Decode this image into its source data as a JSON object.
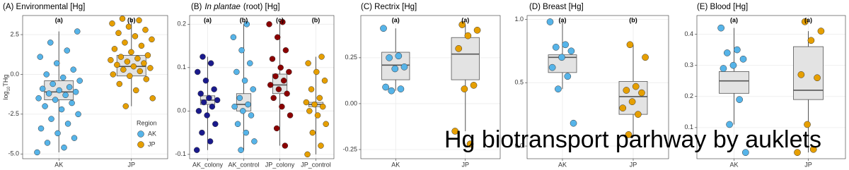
{
  "caption": "Hg biotransport parhway by auklets",
  "chart_data": [
    {
      "type": "box",
      "title": "(A) Environmental [Hg]",
      "ylabel": "log",
      "ylabel_sub": "10",
      "ylabel_suffix": "THg",
      "categories": [
        "AK",
        "JP"
      ],
      "letters": [
        "(a)",
        "(b)"
      ],
      "ylim": [
        -5.3,
        3.7
      ],
      "yticks": [
        {
          "value": -5.0,
          "label": "-5.0"
        },
        {
          "value": -2.5,
          "label": "-2.5"
        },
        {
          "value": 0,
          "label": "0.0"
        },
        {
          "value": 2.5,
          "label": "2.5"
        }
      ],
      "grid": true,
      "legend": "bottom-right",
      "legend_title": "Region",
      "series": [
        {
          "name": "AK",
          "color": "#56b4e9",
          "box": [
            -4.9,
            -1.6,
            -1.1,
            -0.4,
            2.7
          ],
          "values": [
            -4.9,
            -4.6,
            -4.3,
            -4.0,
            -3.7,
            -3.4,
            -3.1,
            -2.8,
            -2.5,
            -2.2,
            -2.0,
            -1.8,
            -1.6,
            -1.5,
            -1.3,
            -1.2,
            -1.1,
            -1.0,
            -0.9,
            -0.8,
            -0.6,
            -0.4,
            -0.2,
            0.0,
            0.3,
            0.7,
            1.1,
            1.5,
            2.0,
            2.7
          ]
        },
        {
          "name": "JP",
          "color": "#e69f00",
          "box": [
            -2.0,
            -0.1,
            0.5,
            1.2,
            3.5
          ],
          "values": [
            -2.0,
            -1.5,
            -1.0,
            -0.6,
            -0.3,
            -0.1,
            0.0,
            0.2,
            0.3,
            0.4,
            0.5,
            0.6,
            0.7,
            0.8,
            0.9,
            1.0,
            1.1,
            1.2,
            1.4,
            1.6,
            1.8,
            2.0,
            2.2,
            2.4,
            2.6,
            2.8,
            3.0,
            3.2,
            3.4,
            3.5
          ]
        }
      ]
    },
    {
      "type": "box",
      "title": "(B)",
      "title_italic": "In plantae",
      "title_suffix": "(root) [Hg]",
      "categories": [
        "AK_colony",
        "AK_control",
        "JP_colony",
        "JP_control"
      ],
      "letters": [
        "(a)",
        "(b)",
        "(c)",
        "(b)"
      ],
      "ylim": [
        -0.11,
        0.22
      ],
      "yticks": [
        -0.1,
        {
          "value": 0,
          "label": "0.0"
        },
        0.1,
        0.2
      ],
      "grid": true,
      "series": [
        {
          "color": "#1a1a8c",
          "box": [
            -0.09,
            0.015,
            0.025,
            0.035,
            0.125
          ],
          "values": [
            -0.09,
            -0.07,
            -0.05,
            -0.03,
            -0.01,
            0.0,
            0.01,
            0.02,
            0.025,
            0.03,
            0.04,
            0.05,
            0.07,
            0.09,
            0.11,
            0.125
          ]
        },
        {
          "color": "#56b4e9",
          "box": [
            -0.09,
            0.0,
            0.015,
            0.04,
            0.2
          ],
          "values": [
            -0.09,
            -0.07,
            -0.05,
            -0.03,
            -0.01,
            0.0,
            0.01,
            0.015,
            0.03,
            0.05,
            0.07,
            0.09,
            0.11,
            0.14,
            0.17,
            0.2
          ]
        },
        {
          "color": "#8b0000",
          "box": [
            -0.08,
            0.04,
            0.06,
            0.085,
            0.205
          ],
          "values": [
            -0.08,
            -0.04,
            -0.01,
            0.01,
            0.03,
            0.04,
            0.05,
            0.06,
            0.07,
            0.08,
            0.09,
            0.1,
            0.12,
            0.14,
            0.17,
            0.2,
            0.205
          ]
        },
        {
          "color": "#e69f00",
          "box": [
            -0.1,
            0.01,
            0.015,
            0.02,
            0.125
          ],
          "values": [
            -0.1,
            -0.08,
            -0.05,
            -0.03,
            -0.01,
            0.0,
            0.01,
            0.015,
            0.02,
            0.03,
            0.05,
            0.07,
            0.09,
            0.11,
            0.125
          ]
        }
      ]
    },
    {
      "type": "box",
      "title": "(C) Rectrix [Hg]",
      "categories": [
        "AK",
        "JP"
      ],
      "letters": [
        "(a)",
        "(a)"
      ],
      "ylim": [
        -0.3,
        0.48
      ],
      "yticks": [
        {
          "value": -0.25,
          "label": "-0.25"
        },
        {
          "value": 0,
          "label": "0.00"
        },
        0.25
      ],
      "grid": true,
      "series": [
        {
          "color": "#56b4e9",
          "box": [
            0.07,
            0.13,
            0.21,
            0.28,
            0.41
          ],
          "values": [
            0.41,
            0.26,
            0.25,
            0.2,
            0.19,
            0.09,
            0.08,
            0.07
          ]
        },
        {
          "color": "#e69f00",
          "box": [
            -0.15,
            0.13,
            0.27,
            0.36,
            0.43
          ],
          "values": [
            0.43,
            0.4,
            0.37,
            0.3,
            0.1,
            0.08,
            -0.15,
            -0.22
          ]
        }
      ]
    },
    {
      "type": "box",
      "title": "(D) Breast [Hg]",
      "categories": [
        "AK",
        "JP"
      ],
      "letters": [
        "(a)",
        "(b)"
      ],
      "ylim": [
        -0.1,
        1.03
      ],
      "yticks": [
        {
          "value": 0,
          "label": "0.0"
        },
        0.5,
        {
          "value": 1,
          "label": "1.0"
        }
      ],
      "grid": true,
      "series": [
        {
          "color": "#56b4e9",
          "box": [
            0.45,
            0.58,
            0.7,
            0.72,
            0.98
          ],
          "values": [
            0.98,
            0.8,
            0.78,
            0.75,
            0.7,
            0.62,
            0.55,
            0.45,
            0.18
          ]
        },
        {
          "color": "#e69f00",
          "box": [
            0.09,
            0.25,
            0.39,
            0.51,
            0.8
          ],
          "values": [
            0.8,
            0.7,
            0.47,
            0.44,
            0.42,
            0.35,
            0.3,
            0.25,
            0.09
          ]
        }
      ]
    },
    {
      "type": "box",
      "title": "(E) Blood [Hg]",
      "categories": [
        "AK",
        "JP"
      ],
      "letters": [
        "(a)",
        "(a)"
      ],
      "ylim": [
        0.0,
        0.46
      ],
      "yticks": [
        0.1,
        0.2,
        0.3,
        0.4
      ],
      "grid": true,
      "series": [
        {
          "color": "#56b4e9",
          "box": [
            0.11,
            0.21,
            0.25,
            0.28,
            0.42
          ],
          "values": [
            0.42,
            0.35,
            0.34,
            0.32,
            0.3,
            0.29,
            0.19,
            0.11,
            0.02
          ]
        },
        {
          "color": "#e69f00",
          "box": [
            0.02,
            0.19,
            0.22,
            0.36,
            0.41
          ],
          "values": [
            0.44,
            0.41,
            0.38,
            0.27,
            0.26,
            0.11,
            0.02,
            0.03
          ]
        }
      ]
    }
  ]
}
